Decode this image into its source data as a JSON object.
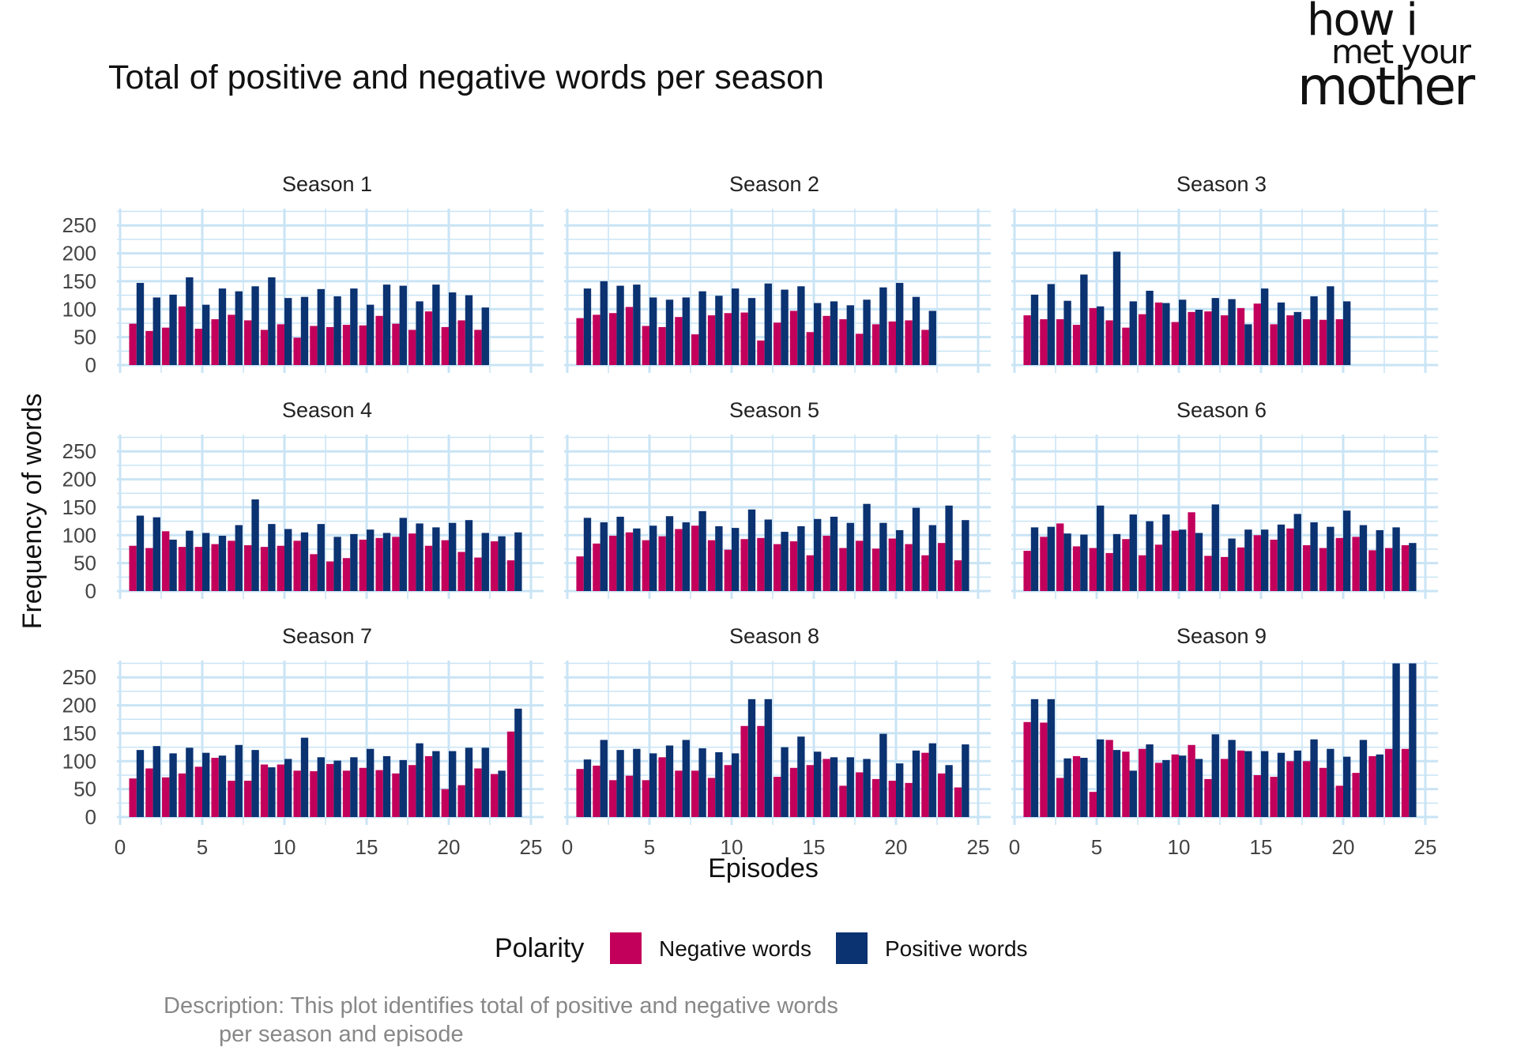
{
  "title": "Total of positive and negative words per season",
  "logo": {
    "line1": "how i",
    "line2": "met your",
    "line3": "mother"
  },
  "xlabel": "Episodes",
  "ylabel": "Frequency of words",
  "legend": {
    "title": "Polarity",
    "items": [
      {
        "label": "Negative words",
        "color": "#C2005B"
      },
      {
        "label": "Positive words",
        "color": "#0B3271"
      }
    ]
  },
  "caption": {
    "line1": "Description: This plot identifies total of positive and negative words",
    "line2": "per season and episode"
  },
  "chart_data": {
    "type": "bar",
    "layout": "facet-grid-3x3",
    "xlim": [
      0,
      25
    ],
    "ylim": [
      0,
      280
    ],
    "xticks": [
      0,
      5,
      10,
      15,
      20,
      25
    ],
    "yticks": [
      0,
      50,
      100,
      150,
      200,
      250
    ],
    "grid": true,
    "legend_position": "bottom",
    "colors": {
      "negative": "#C2005B",
      "positive": "#0B3271",
      "grid": "#C9E4F5"
    },
    "seasons": [
      {
        "name": "Season 1",
        "negative": [
          74,
          61,
          67,
          105,
          65,
          82,
          90,
          80,
          63,
          73,
          49,
          70,
          68,
          72,
          71,
          88,
          74,
          63,
          96,
          68,
          80,
          63
        ],
        "positive": [
          147,
          121,
          126,
          157,
          108,
          137,
          132,
          141,
          157,
          120,
          122,
          136,
          123,
          137,
          108,
          144,
          142,
          114,
          144,
          130,
          125,
          103
        ]
      },
      {
        "name": "Season 2",
        "negative": [
          84,
          90,
          93,
          104,
          70,
          68,
          86,
          55,
          89,
          93,
          94,
          44,
          76,
          97,
          59,
          88,
          82,
          56,
          73,
          78,
          80,
          63
        ],
        "positive": [
          137,
          150,
          142,
          144,
          121,
          117,
          121,
          132,
          124,
          137,
          120,
          146,
          135,
          141,
          111,
          114,
          107,
          117,
          139,
          147,
          122,
          97
        ]
      },
      {
        "name": "Season 3",
        "negative": [
          89,
          82,
          82,
          72,
          102,
          80,
          67,
          91,
          112,
          77,
          95,
          96,
          89,
          102,
          110,
          73,
          89,
          82,
          81,
          82
        ],
        "positive": [
          126,
          145,
          115,
          162,
          105,
          203,
          114,
          133,
          111,
          117,
          99,
          120,
          118,
          73,
          137,
          112,
          95,
          123,
          141,
          114
        ]
      },
      {
        "name": "Season 4",
        "negative": [
          81,
          77,
          107,
          79,
          79,
          84,
          90,
          82,
          79,
          81,
          90,
          66,
          53,
          59,
          92,
          95,
          97,
          103,
          81,
          91,
          70,
          60,
          89,
          55
        ],
        "positive": [
          135,
          132,
          92,
          108,
          104,
          99,
          118,
          164,
          120,
          111,
          105,
          120,
          97,
          102,
          110,
          104,
          131,
          121,
          114,
          122,
          127,
          104,
          98,
          105
        ]
      },
      {
        "name": "Season 5",
        "negative": [
          62,
          85,
          99,
          105,
          91,
          98,
          111,
          117,
          91,
          74,
          93,
          95,
          84,
          89,
          64,
          99,
          77,
          90,
          76,
          94,
          84,
          64,
          86,
          55
        ],
        "positive": [
          131,
          123,
          133,
          112,
          117,
          134,
          123,
          143,
          116,
          113,
          146,
          128,
          106,
          116,
          129,
          133,
          122,
          156,
          122,
          109,
          149,
          118,
          153,
          127
        ]
      },
      {
        "name": "Season 6",
        "negative": [
          72,
          97,
          121,
          80,
          77,
          68,
          93,
          64,
          83,
          108,
          141,
          63,
          61,
          78,
          100,
          92,
          112,
          82,
          77,
          95,
          97,
          73,
          77,
          82
        ],
        "positive": [
          114,
          115,
          103,
          101,
          153,
          102,
          137,
          125,
          137,
          110,
          104,
          155,
          94,
          110,
          110,
          119,
          138,
          123,
          115,
          144,
          118,
          109,
          114,
          86
        ]
      },
      {
        "name": "Season 7",
        "negative": [
          69,
          87,
          71,
          78,
          90,
          106,
          65,
          65,
          94,
          94,
          83,
          82,
          95,
          83,
          88,
          84,
          78,
          93,
          109,
          50,
          57,
          87,
          77,
          153
        ],
        "positive": [
          120,
          127,
          114,
          124,
          115,
          110,
          129,
          120,
          89,
          104,
          142,
          107,
          101,
          107,
          122,
          109,
          102,
          132,
          118,
          118,
          124,
          124,
          83,
          194
        ]
      },
      {
        "name": "Season 8",
        "negative": [
          86,
          92,
          66,
          74,
          66,
          107,
          83,
          83,
          70,
          93,
          163,
          163,
          72,
          88,
          93,
          104,
          56,
          80,
          68,
          65,
          61,
          115,
          78,
          53
        ],
        "positive": [
          103,
          138,
          120,
          122,
          114,
          128,
          138,
          123,
          116,
          114,
          211,
          211,
          125,
          144,
          117,
          107,
          107,
          104,
          149,
          96,
          119,
          132,
          93,
          130
        ]
      },
      {
        "name": "Season 9",
        "negative": [
          170,
          169,
          70,
          109,
          45,
          138,
          117,
          122,
          97,
          112,
          129,
          68,
          104,
          119,
          75,
          72,
          100,
          100,
          88,
          56,
          79,
          109,
          122,
          122
        ],
        "positive": [
          211,
          211,
          105,
          106,
          139,
          120,
          83,
          130,
          102,
          110,
          104,
          148,
          138,
          118,
          118,
          115,
          119,
          139,
          122,
          108,
          138,
          112,
          275,
          275
        ]
      }
    ]
  }
}
